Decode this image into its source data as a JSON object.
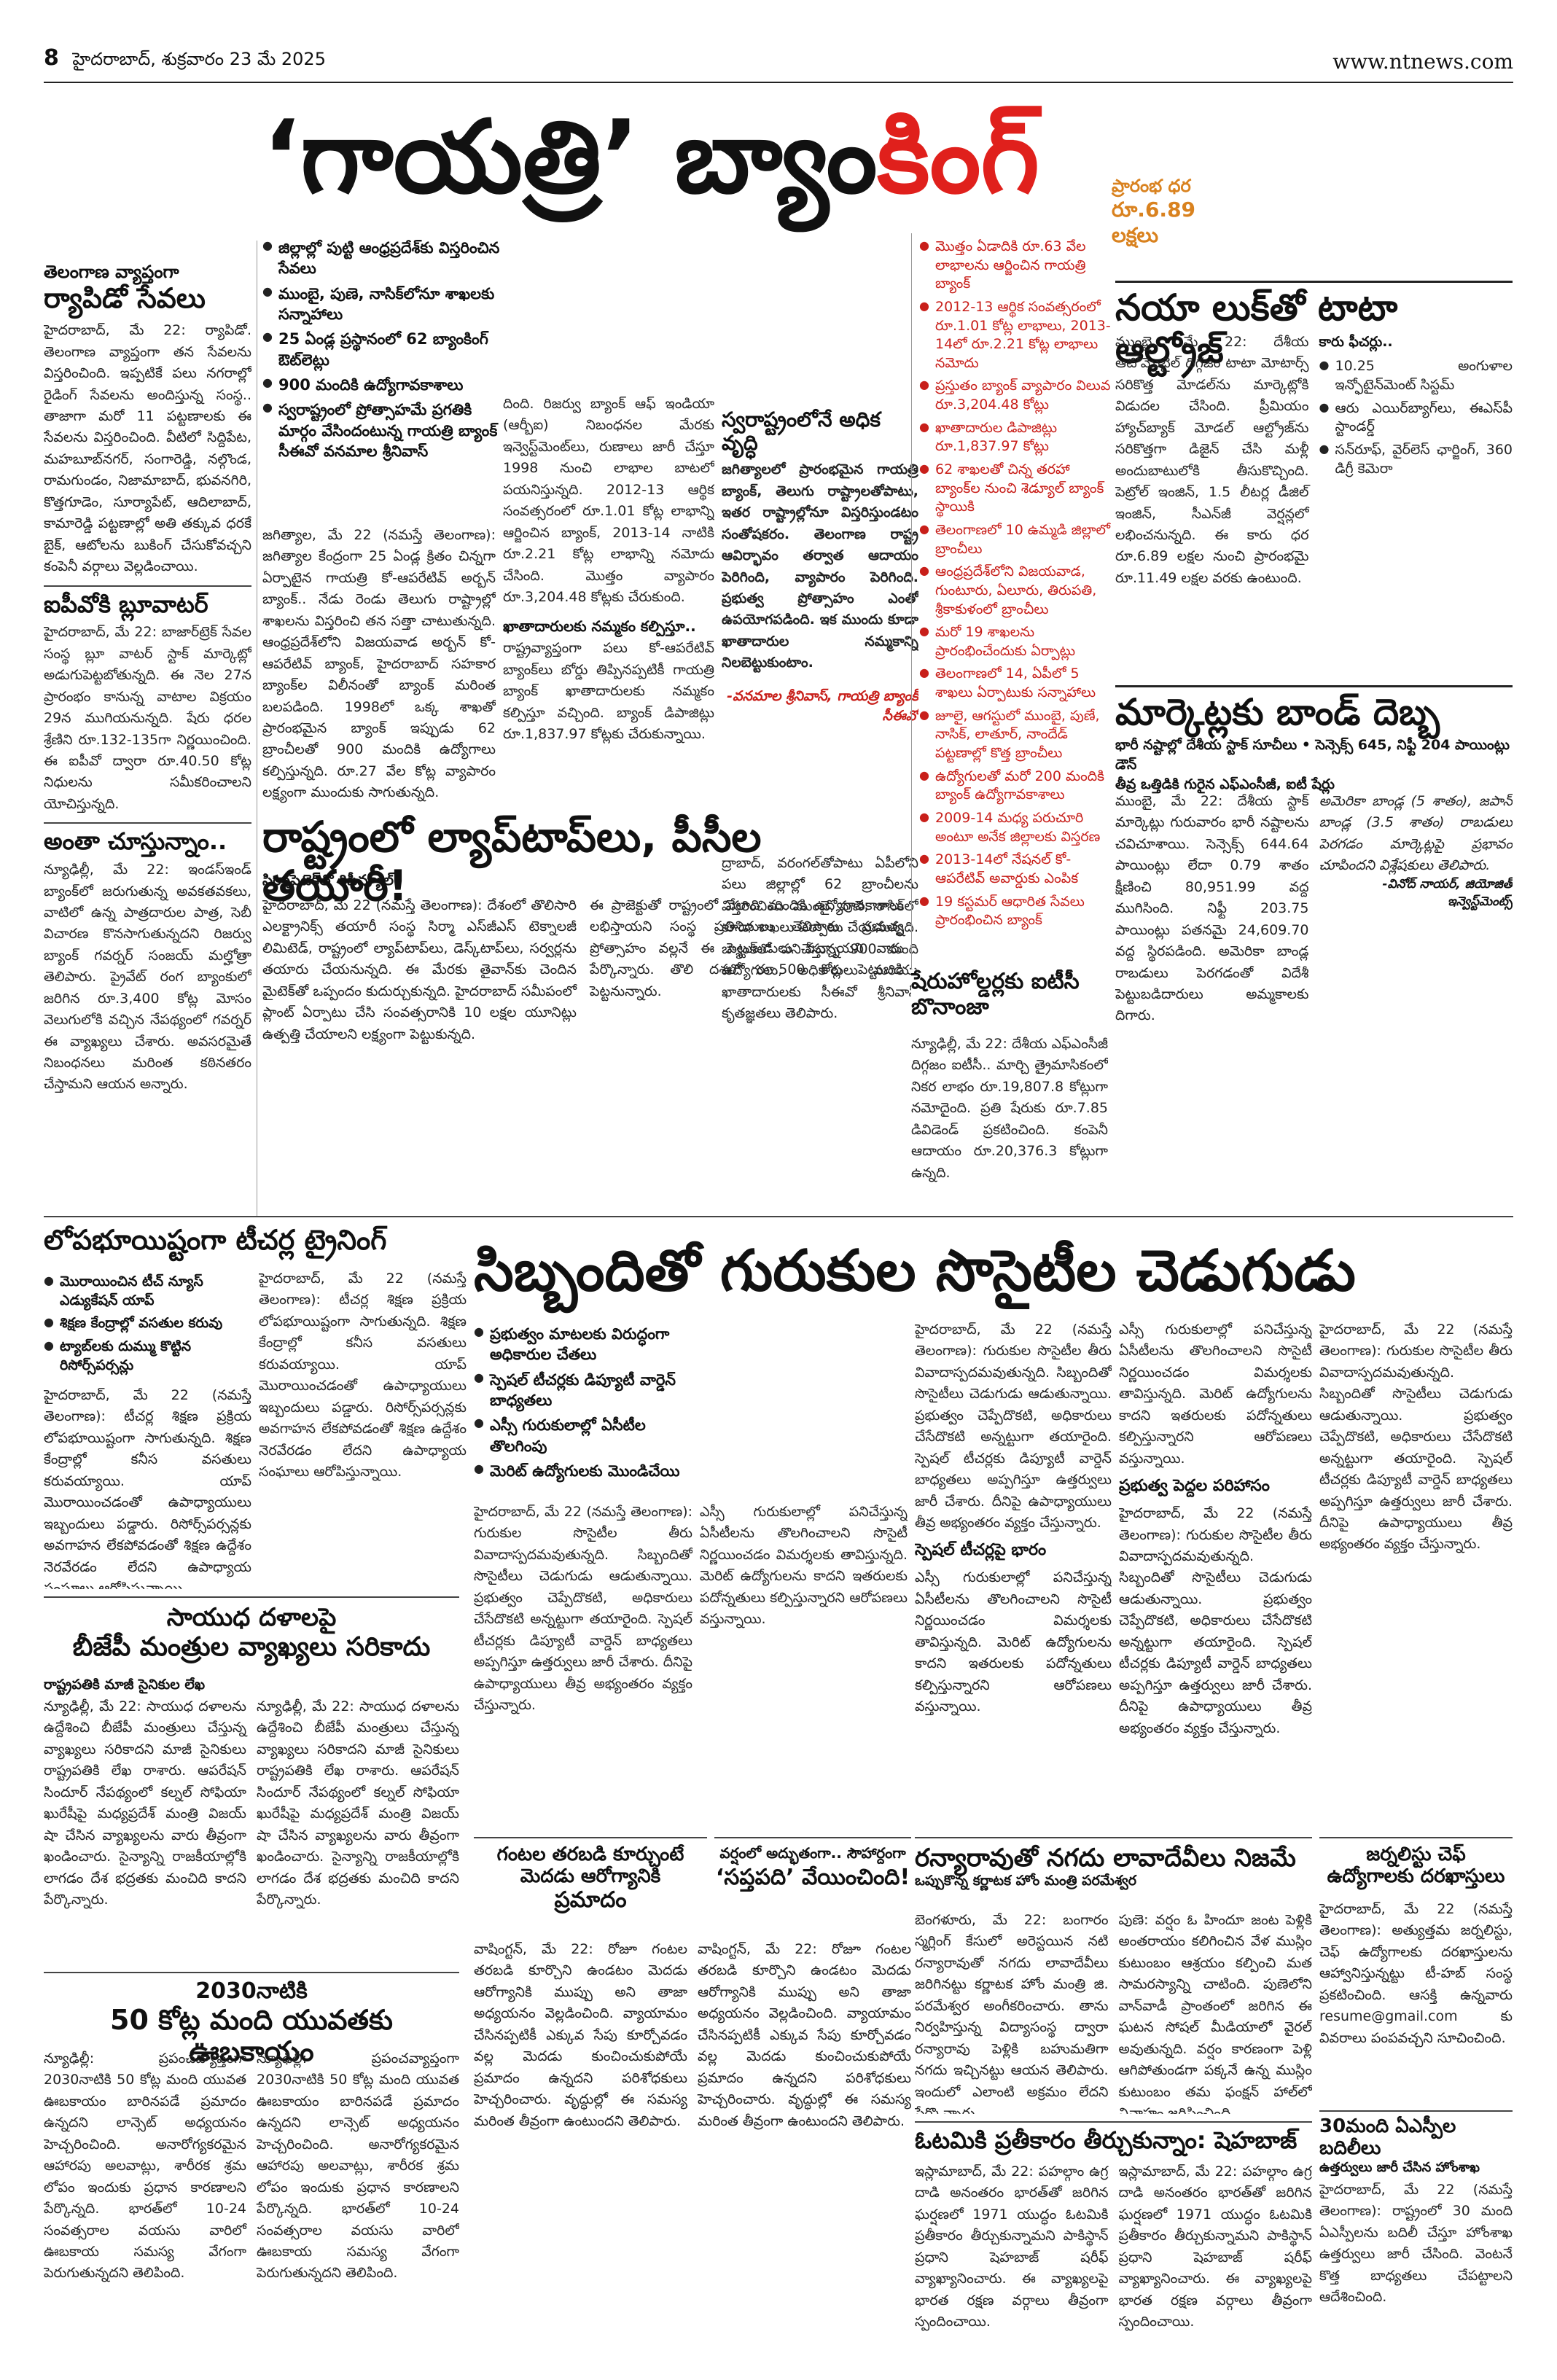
{
  "header": {
    "page_no": "8",
    "dateline": "హైదరాబాద్, శుక్రవారం 23 మే 2025",
    "site": "www.ntnews.com"
  },
  "main_title": {
    "part1": "‘గాయత్రి’ బ్యాం",
    "part2": "కింగ్"
  },
  "gayatri": {
    "highlights": [
      "జిల్లాల్లో పుట్టి ఆంధ్రప్రదేశ్‌కు విస్తరించిన సేవలు",
      "ముంబై, పుణె, నాసిక్‌లోనూ శాఖలకు సన్నాహాలు",
      "25 ఏండ్ల ప్రస్థానంలో 62 బ్యాంకింగ్ ఔట్‌లెట్లు",
      "900 మందికి ఉద్యోగావకాశాలు",
      "స్వరాష్ట్రంలో ప్రోత్సాహమే ప్రగతికి మార్గం వేసిందంటున్న గాయత్రి బ్యాంక్ సీఈవో వనమాల శ్రీనివాస్"
    ],
    "section1_heading": "తెలంగాణ వ్యాప్తంగా",
    "section1_title": "ర్యాపిడో సేవలు",
    "col1_text": "హైదరాబాద్, మే 22: ర్యాపిడో. తెలంగాణ వ్యాప్తంగా తన సేవలను విస్తరించింది. ఇప్పటికే పలు నగరాల్లో రైడింగ్ సేవలను అందిస్తున్న సంస్థ.. తాజాగా మరో 11 పట్టణాలకు ఈ సేవలను విస్తరించింది. వీటిలో సిద్దిపేట, మహబూబ్‌నగర్, సంగారెడ్డి, నల్గొండ, రామగుండం, నిజామాబాద్, భువనగిరి, కొత్తగూడెం, సూర్యాపేట్, ఆదిలాబాద్, కామారెడ్డి పట్టణాల్లో అతి తక్కువ ధరకే బైక్, ఆటోలను బుకింగ్ చేసుకోవచ్చని కంపెనీ వర్గాలు వెల్లడించాయి.",
    "section2_title": "ఐపీవోకి బ్లూవాటర్",
    "col1_text2": "హైదరాబాద్, మే 22: బాజార్‌ట్రెక్ సేవల సంస్థ బ్లూ వాటర్ స్టాక్ మార్కెట్లో అడుగుపెట్టబోతున్నది. ఈ నెల 27న ప్రారంభం కానున్న వాటాల విక్రయం 29న ముగియనున్నది. షేరు ధరల శ్రేణిని రూ.132-135గా నిర్ణయించింది. ఈ ఐపీవో ద్వారా రూ.40.50 కోట్ల నిధులను సమీకరించాలని యోచిస్తున్నది.",
    "section3_title": "అంతా చూస్తున్నాం..",
    "col1_text3": "న్యూఢిల్లీ, మే 22: ఇండస్‌ఇండ్ బ్యాంక్‌లో జరుగుతున్న అవకతవకలు, వాటిలో ఉన్న పాత్రదారుల పాత్ర, సెబీ విచారణ కొనసాగుతున్నదని రిజర్వు బ్యాంక్ గవర్నర్ సంజయ్ మల్హోత్రా తెలిపారు. ప్రైవేట్ రంగ బ్యాంకులో జరిగిన రూ.3,400 కోట్ల మోసం వెలుగులోకి వచ్చిన నేపథ్యంలో గవర్నర్ ఈ వ్యాఖ్యలు చేశారు. అవసరమైతే నిబంధనలు మరింత కఠినతరం చేస్తామని ఆయన అన్నారు.",
    "col2_text": "జగిత్యాల, మే 22 (నమస్తే తెలంగాణ): జగిత్యాల కేంద్రంగా 25 ఏండ్ల క్రితం చిన్నగా ఏర్పాటైన గాయత్రి కో-ఆపరేటివ్ అర్బన్ బ్యాంక్.. నేడు రెండు తెలుగు రాష్ట్రాల్లో శాఖలను విస్తరించి తన సత్తా చాటుతున్నది. ఆంధ్రప్రదేశ్‌లోని విజయవాడ అర్బన్ కో-ఆపరేటివ్ బ్యాంక్, హైదరాబాద్ సహకార బ్యాంక్‌ల విలీనంతో బ్యాంక్ మరింత బలపడింది. 1998లో ఒక్క శాఖతో ప్రారంభమైన బ్యాంక్ ఇప్పుడు 62 బ్రాంచీలతో 900 మందికి ఉద్యోగాలు కల్పిస్తున్నది. రూ.27 వేల కోట్ల వ్యాపారం లక్ష్యంగా ముందుకు సాగుతున్నది.",
    "col3_text": "దింది. రిజర్వు బ్యాంక్ ఆఫ్ ఇండియా (ఆర్బీఐ) నిబంధనల మేరకు ఇన్వెస్ట్‌మెంట్‌లు, రుణాలు జారీ చేస్తూ 1998 నుంచి లాభాల బాటలో పయనిస్తున్నది. 2012-13 ఆర్థిక సంవత్సరంలో రూ.1.01 కోట్ల లాభాన్ని ఆర్జించిన బ్యాంక్, 2013-14 నాటికి రూ.2.21 కోట్ల లాభాన్ని నమోదు చేసింది. మొత్తం వ్యాపారం రూ.3,204.48 కోట్లకు చేరుకుంది.",
    "subhead_customers": "ఖాతాదారులకు నమ్మకం కల్పిస్తూ..",
    "col3_text2": "రాష్ట్రవ్యాప్తంగా పలు కో-ఆపరేటివ్ బ్యాంక్‌లు బోర్డు తిప్పినప్పటికీ గాయత్రి బ్యాంక్ ఖాతాదారులకు నమ్మకం కల్పిస్తూ వచ్చింది. బ్యాంక్ డిపాజిట్లు రూ.1,837.97 కోట్లకు చేరుకున్నాయి.",
    "pull_quote": "స్వరాష్ట్రంలోనే అధిక వృద్ధి",
    "quote_text": "జగిత్యాలలో ప్రారంభమైన గాయత్రి బ్యాంక్, తెలుగు రాష్ట్రాలతోపాటు, ఇతర రాష్ట్రాల్లోనూ విస్తరిస్తుండటం సంతోషకరం. తెలంగాణ రాష్ట్ర ఆవిర్భావం తర్వాత ఆదాయం పెరిగింది, వ్యాపారం పెరిగింది. ప్రభుత్వ ప్రోత్సాహం ఎంతో ఉపయోగపడింది. ఇక ముందు కూడా ఖాతాదారుల నమ్మకాన్ని నిలబెట్టుకుంటాం.",
    "quote_byline": "-వనమాల శ్రీనివాస్, గాయత్రి బ్యాంక్ సీఈవో",
    "col4_text": "ద్రాబాద్, వరంగల్‌తోపాటు ఏపీలోని పలు జిల్లాల్లో 62 బ్రాంచీలను విస్తరించింది. ముంబై, పుణె, నాసిక్‌లో కూడా శాఖలు ఏర్పాటు చేయనున్నది. బ్యాంక్‌లో పనిచేస్తున్న 900 మంది ఉద్యోగులు, అధికారులు మరియు ఖాతాదారులకు సీఈవో శ్రీనివాస్ కృతజ్ఞతలు తెలిపారు.",
    "facts": [
      "మొత్తం ఏడాదికి రూ.63 వేల లాభాలను ఆర్జించిన గాయత్రి బ్యాంక్",
      "2012-13 ఆర్థిక సంవత్సరంలో రూ.1.01 కోట్ల లాభాలు, 2013-14లో రూ.2.21 కోట్ల లాభాలు నమోదు",
      "ప్రస్తుతం బ్యాంక్ వ్యాపారం విలువ రూ.3,204.48 కోట్లు",
      "ఖాతాదారుల డిపాజిట్లు రూ.1,837.97 కోట్లు",
      "62 శాఖలతో చిన్న తరహా బ్యాంక్‌ల నుంచి శెడ్యూల్ బ్యాంక్ స్థాయికి",
      "తెలంగాణలో 10 ఉమ్మడి జిల్లాలో బ్రాంచీలు",
      "ఆంధ్రప్రదేశ్‌లోని విజయవాడ, గుంటూరు, ఏలూరు, తిరుపతి, శ్రీకాకుళంలో బ్రాంచీలు",
      "మరో 19 శాఖలను ప్రారంభించేందుకు ఏర్పాట్లు",
      "తెలంగాణలో 14, ఏపీలో 5 శాఖలు ఏర్పాటుకు సన్నాహాలు",
      "జూలై, ఆగస్టులో ముంబై, పుణే, నాసిక్, లాతూర్, నాందేడ్ పట్టణాల్లో కొత్త బ్రాంచీలు",
      "ఉద్యోగులతో మరో 200 మందికి బ్యాంక్ ఉద్యోగావకాశాలు",
      "2009-14 మధ్య పరుచూరి అంటూ అనేక జిల్లాలకు విస్తరణ",
      "2013-14లో నేషనల్ కో-ఆపరేటివ్ అవార్డుకు ఎంపిక",
      "19 కస్టమర్ ఆధారిత సేవలు ప్రారంభించిన బ్యాంక్"
    ]
  },
  "laptops": {
    "title": "రాష్ట్రంలో ల్యాప్‌టాప్‌లు, పీసీల తయారీ!",
    "tagline": "సిర్మాపెటెక్‌తో రిపీవ్యూల్",
    "text1": "హైదరాబాద్, మే 22 (నమస్తే తెలంగాణ): దేశంలో తొలిసారి ఎలక్ట్రానిక్స్ తయారీ సంస్థ సిర్మా ఎస్‌జీఎస్ టెక్నాలజీ లిమిటెడ్, రాష్ట్రంలో ల్యాప్‌టాప్‌లు, డెస్క్‌టాప్‌లు, సర్వర్లను తయారు చేయనున్నది. ఈ మేరకు తైవాన్‌కు చెందిన మైటెక్‌తో ఒప్పందం కుదుర్చుకున్నది. హైదరాబాద్ సమీపంలో ప్లాంట్ ఏర్పాటు చేసి సంవత్సరానికి 10 లక్షల యూనిట్లు ఉత్పత్తి చేయాలని లక్ష్యంగా పెట్టుకున్నది.",
    "text2": "ఈ ప్రాజెక్టుతో రాష్ట్రంలో వేలాది మందికి ఉద్యోగావకాశాలు లభిస్తాయని సంస్థ ప్రతినిధులు తెలిపారు. ప్రభుత్వ ప్రోత్సాహం వల్లనే ఈ పెట్టుబడులు వచ్చాయని వారు పేర్కొన్నారు. తొలి దశలో రూ.500 కోట్ల పెట్టుబడి పెట్టనున్నారు."
  },
  "altroz": {
    "price_label": "ప్రారంభ ధర",
    "price": "రూ.6.89 లక్షలు",
    "title": "నయా లుక్‌తో టాటా ఆల్ట్రోజ్",
    "text": "ముంబై, మే 22: దేశీయ ఆటోమొబైల్ దిగ్గజం టాటా మోటార్స్ సరికొత్త మోడల్‌ను మార్కెట్లోకి విడుదల చేసింది. ప్రీమియం హ్యాచ్‌బ్యాక్ మోడల్ ఆల్ట్రోజ్‌ను సరికొత్తగా డిజైన్ చేసి మళ్లీ అందుబాటులోకి తీసుకొచ్చింది. పెట్రోల్ ఇంజిన్, 1.5 లీటర్ల డీజిల్ ఇంజిన్, సీఎన్‌జీ వెర్షన్లలో లభించనున్నది. ఈ కారు ధర రూ.6.89 లక్షల నుంచి ప్రారంభమై రూ.11.49 లక్షల వరకు ఉంటుంది.",
    "features_heading": "కారు ఫీచర్లు..",
    "features": [
      "10.25 అంగుళాల ఇన్ఫోటైన్‌మెంట్ సిస్టమ్",
      "ఆరు ఎయిర్‌బ్యాగ్‌లు, ఈఎస్‌పీ స్టాండర్డ్",
      "సన్‌రూఫ్, వైర్‌లెస్ ఛార్జింగ్, 360 డిగ్రీ కెమెరా"
    ]
  },
  "markets": {
    "title": "మార్కెట్లకు బాండ్ దెబ్బ",
    "subtitle": "భారీ నష్టాల్లో దేశీయ స్టాక్ సూచీలు • సెన్సెక్స్ 645, నిఫ్టీ 204 పాయింట్లు డౌన్",
    "subtitle2": "తీవ్ర ఒత్తిడికి గురైన ఎఫ్ఎంసీజీ, ఐటీ షేర్లు",
    "text": "ముంబై, మే 22: దేశీయ స్టాక్ మార్కెట్లు గురువారం భారీ నష్టాలను చవిచూశాయి. సెన్సెక్స్ 644.64 పాయింట్లు లేదా 0.79 శాతం క్షీణించి 80,951.99 వద్ద ముగిసింది. నిఫ్టీ 203.75 పాయింట్లు పతనమై 24,609.70 వద్ద స్థిరపడింది. అమెరికా బాండ్ల రాబడులు పెరగడంతో విదేశీ పెట్టుబడిదారులు అమ్మకాలకు దిగారు.",
    "text2": "అమెరికా బాండ్ల (5 శాతం), జపాన్ బాండ్ల (3.5 శాతం) రాబడులు పెరగడం మార్కెట్లపై ప్రభావం చూపిందని విశ్లేషకులు తెలిపారు.",
    "byline": "-వినోద్ నాయర్, జియోజిత్ ఇన్వెస్ట్‌మెంట్స్"
  },
  "itc": {
    "title": "షేరుహోల్డర్లకు ఐటీసీ బొనాంజా",
    "text": "న్యూఢిల్లీ, మే 22: దేశీయ ఎఫ్‌ఎంసీజీ దిగ్గజం ఐటీసీ.. మార్చి త్రైమాసికంలో నికర లాభం రూ.19,807.8 కోట్లుగా నమోదైంది. ప్రతి షేరుకు రూ.7.85 డివిడెండ్ ప్రకటించింది. కంపెనీ ఆదాయం రూ.20,376.3 కోట్లుగా ఉన్నది."
  },
  "teachers": {
    "title": "లోపభూయిష్టంగా టీచర్ల ట్రైనింగ్",
    "bullets": [
      "మొరాయించిన టీచ్ న్యూస్ ఎడ్యుకేషన్ యాప్",
      "శిక్షణ కేంద్రాల్లో వసతుల కరువు",
      "ట్యాబ్‌లకు దుమ్ము కొట్టిన రిసోర్స్‌పర్సన్లు"
    ],
    "text": "హైదరాబాద్, మే 22 (నమస్తే తెలంగాణ): టీచర్ల శిక్షణ ప్రక్రియ లోపభూయిష్టంగా సాగుతున్నది. శిక్షణ కేంద్రాల్లో కనీస వసతులు కరువయ్యాయి. యాప్ మొరాయించడంతో ఉపాధ్యాయులు ఇబ్బందులు పడ్డారు. రిసోర్స్‌పర్సన్లకు అవగాహన లేకపోవడంతో శిక్షణ ఉద్దేశం నెరవేరడం లేదని ఉపాధ్యాయ సంఘాలు ఆరోపిస్తున్నాయి."
  },
  "gurukul": {
    "title": "సిబ్బందితో గురుకుల సొసైటీల చెడుగుడు",
    "bullets": [
      "ప్రభుత్వం మాటలకు విరుద్ధంగా అధికారుల చేతలు",
      "స్పెషల్ టీచర్లకు డిప్యూటీ వార్డెన్ బాధ్యతలు",
      "ఎస్సీ గురుకులాల్లో ఏసీటీల తొలగింపు",
      "మెరిట్ ఉద్యోగులకు మొండిచేయి"
    ],
    "text": "హైదరాబాద్, మే 22 (నమస్తే తెలంగాణ): గురుకుల సొసైటీల తీరు వివాదాస్పదమవుతున్నది. సిబ్బందితో సొసైటీలు చెడుగుడు ఆడుతున్నాయి. ప్రభుత్వం చెప్పేదొకటి, అధికారులు చేసేదొకటి అన్నట్టుగా తయారైంది. స్పెషల్ టీచర్లకు డిప్యూటీ వార్డెన్ బాధ్యతలు అప్పగిస్తూ ఉత్తర్వులు జారీ చేశారు. దీనిపై ఉపాధ్యాయులు తీవ్ర అభ్యంతరం వ్యక్తం చేస్తున్నారు.",
    "text2": "ఎస్సీ గురుకులాల్లో పనిచేస్తున్న ఏసీటీలను తొలగించాలని సొసైటీ నిర్ణయించడం విమర్శలకు తావిస్తున్నది. మెరిట్ ఉద్యోగులను కాదని ఇతరులకు పదోన్నతులు కల్పిస్తున్నారని ఆరోపణలు వస్తున్నాయి.",
    "subhead1": "స్పెషల్ టీచర్లపై భారం",
    "subhead2": "ప్రభుత్వ పెద్దల పరిహాసం"
  },
  "bjp": {
    "title1": "సాయుధ దళాలపై",
    "title2": "బీజేపీ మంత్రుల వ్యాఖ్యలు సరికాదు",
    "tagline": "రాష్ట్రపతికి మాజీ సైనికుల లేఖ",
    "text": "న్యూఢిల్లీ, మే 22: సాయుధ దళాలను ఉద్దేశించి బీజేపీ మంత్రులు చేస్తున్న వ్యాఖ్యలు సరికాదని మాజీ సైనికులు రాష్ట్రపతికి లేఖ రాశారు. ఆపరేషన్ సిందూర్ నేపథ్యంలో కల్నల్ సోఫియా ఖురేషీపై మధ్యప్రదేశ్ మంత్రి విజయ్ షా చేసిన వ్యాఖ్యలను వారు తీవ్రంగా ఖండించారు. సైన్యాన్ని రాజకీయాల్లోకి లాగడం దేశ భద్రతకు మంచిది కాదని పేర్కొన్నారు."
  },
  "youth": {
    "title1": "2030నాటికి",
    "title2": "50 కోట్ల మంది యువతకు ఊబకాయం",
    "text": "న్యూఢిల్లీ: ప్రపంచవ్యాప్తంగా 2030నాటికి 50 కోట్ల మంది యువత ఊబకాయం బారినపడే ప్రమాదం ఉన్నదని లాన్సెట్ అధ్యయనం హెచ్చరించింది. అనారోగ్యకరమైన ఆహారపు అలవాట్లు, శారీరక శ్రమ లోపం ఇందుకు ప్రధాన కారణాలని పేర్కొన్నది. భారత్‌లో 10-24 సంవత్సరాల వయసు వారిలో ఊబకాయ సమస్య వేగంగా పెరుగుతున్నదని తెలిపింది."
  },
  "sitting": {
    "title1": "గంటల తరబడి కూర్చుంటే",
    "title2": "మెదడు ఆరోగ్యానికి",
    "title3": "ప్రమాదం",
    "text": "వాషింగ్టన్, మే 22: రోజూ గంటల తరబడి కూర్చొని ఉండటం మెదడు ఆరోగ్యానికి ముప్పు అని తాజా అధ్యయనం వెల్లడించింది. వ్యాయామం చేసినప్పటికీ ఎక్కువ సేపు కూర్చోవడం వల్ల మెదడు కుంచించుకుపోయే ప్రమాదం ఉన్నదని పరిశోధకులు హెచ్చరించారు. వృద్ధుల్లో ఈ సమస్య మరింత తీవ్రంగా ఉంటుందని తెలిపారు."
  },
  "ramayana": {
    "title1": "వర్షంలో అద్భుతంగా.. సౌహార్దంగా",
    "title2": "‘సప్తపది’ వేయించింది!",
    "text": "పుణె: వర్షం ఓ హిందూ జంట పెళ్లికి అంతరాయం కలిగించిన వేళ ముస్లిం కుటుంబం ఆశ్రయం కల్పించి మత సామరస్యాన్ని చాటింది. పుణెలోని వాన్‌వాడీ ప్రాంతంలో జరిగిన ఈ ఘటన సోషల్ మీడియాలో వైరల్ అవుతున్నది. వర్షం కారణంగా పెళ్లి ఆగిపోతుండగా పక్కనే ఉన్న ముస్లిం కుటుంబం తమ ఫంక్షన్ హాల్‌లో వివాహం జరిపించింది."
  },
  "ranyarao": {
    "title": "రన్యారావుతో నగదు లావాదేవీలు నిజమే",
    "tagline": "ఒప్పుకొన్న కర్ణాటక హోం మంత్రి పరమేశ్వర",
    "text": "బెంగళూరు, మే 22: బంగారం స్మగ్లింగ్ కేసులో అరెస్టయిన నటి రన్యారావుతో నగదు లావాదేవీలు జరిగినట్టు కర్ణాటక హోం మంత్రి జి. పరమేశ్వర అంగీకరించారు. తాను నిర్వహిస్తున్న విద్యాసంస్థ ద్వారా రన్యారావు పెళ్లికి బహుమతిగా నగదు ఇచ్చినట్టు ఆయన తెలిపారు. ఇందులో ఎలాంటి అక్రమం లేదని పేర్కొన్నారు."
  },
  "shehbaz": {
    "title": "ఓటమికి ప్రతీకారం తీర్చుకున్నాం: షెహబాజ్",
    "text": "ఇస్లామాబాద్, మే 22: పహల్గాం ఉగ్ర దాడి అనంతరం భారత్‌తో జరిగిన ఘర్షణలో 1971 యుద్ధం ఓటమికి ప్రతీకారం తీర్చుకున్నామని పాకిస్థాన్ ప్రధాని షెహబాజ్ షరీఫ్ వ్యాఖ్యానించారు. ఈ వ్యాఖ్యలపై భారత రక్షణ వర్గాలు తీవ్రంగా స్పందించాయి."
  },
  "jobs": {
    "title1": "జర్నలిస్టు చెఫ్",
    "title2": "ఉద్యోగాలకు దరఖాస్తులు",
    "text": "హైదరాబాద్, మే 22 (నమస్తే తెలంగాణ): అత్యుత్తమ జర్నలిస్టు, చెఫ్ ఉద్యోగాలకు దరఖాస్తులను ఆహ్వానిస్తున్నట్టు టీ-హబ్ సంస్థ ప్రకటించింది. ఆసక్తి ఉన్నవారు resume@gmail.com కు వివరాలు పంపవచ్చని సూచించింది.",
    "title3": "30మంది ఏఎస్పీల బదిలీలు",
    "tagline3": "ఉత్తర్వులు జారీ చేసిన హోంశాఖ",
    "text3": "హైదరాబాద్, మే 22 (నమస్తే తెలంగాణ): రాష్ట్రంలో 30 మంది ఏఎస్పీలను బదిలీ చేస్తూ హోంశాఖ ఉత్తర్వులు జారీ చేసింది. వెంటనే కొత్త బాధ్యతలు చేపట్టాలని ఆదేశించింది."
  }
}
